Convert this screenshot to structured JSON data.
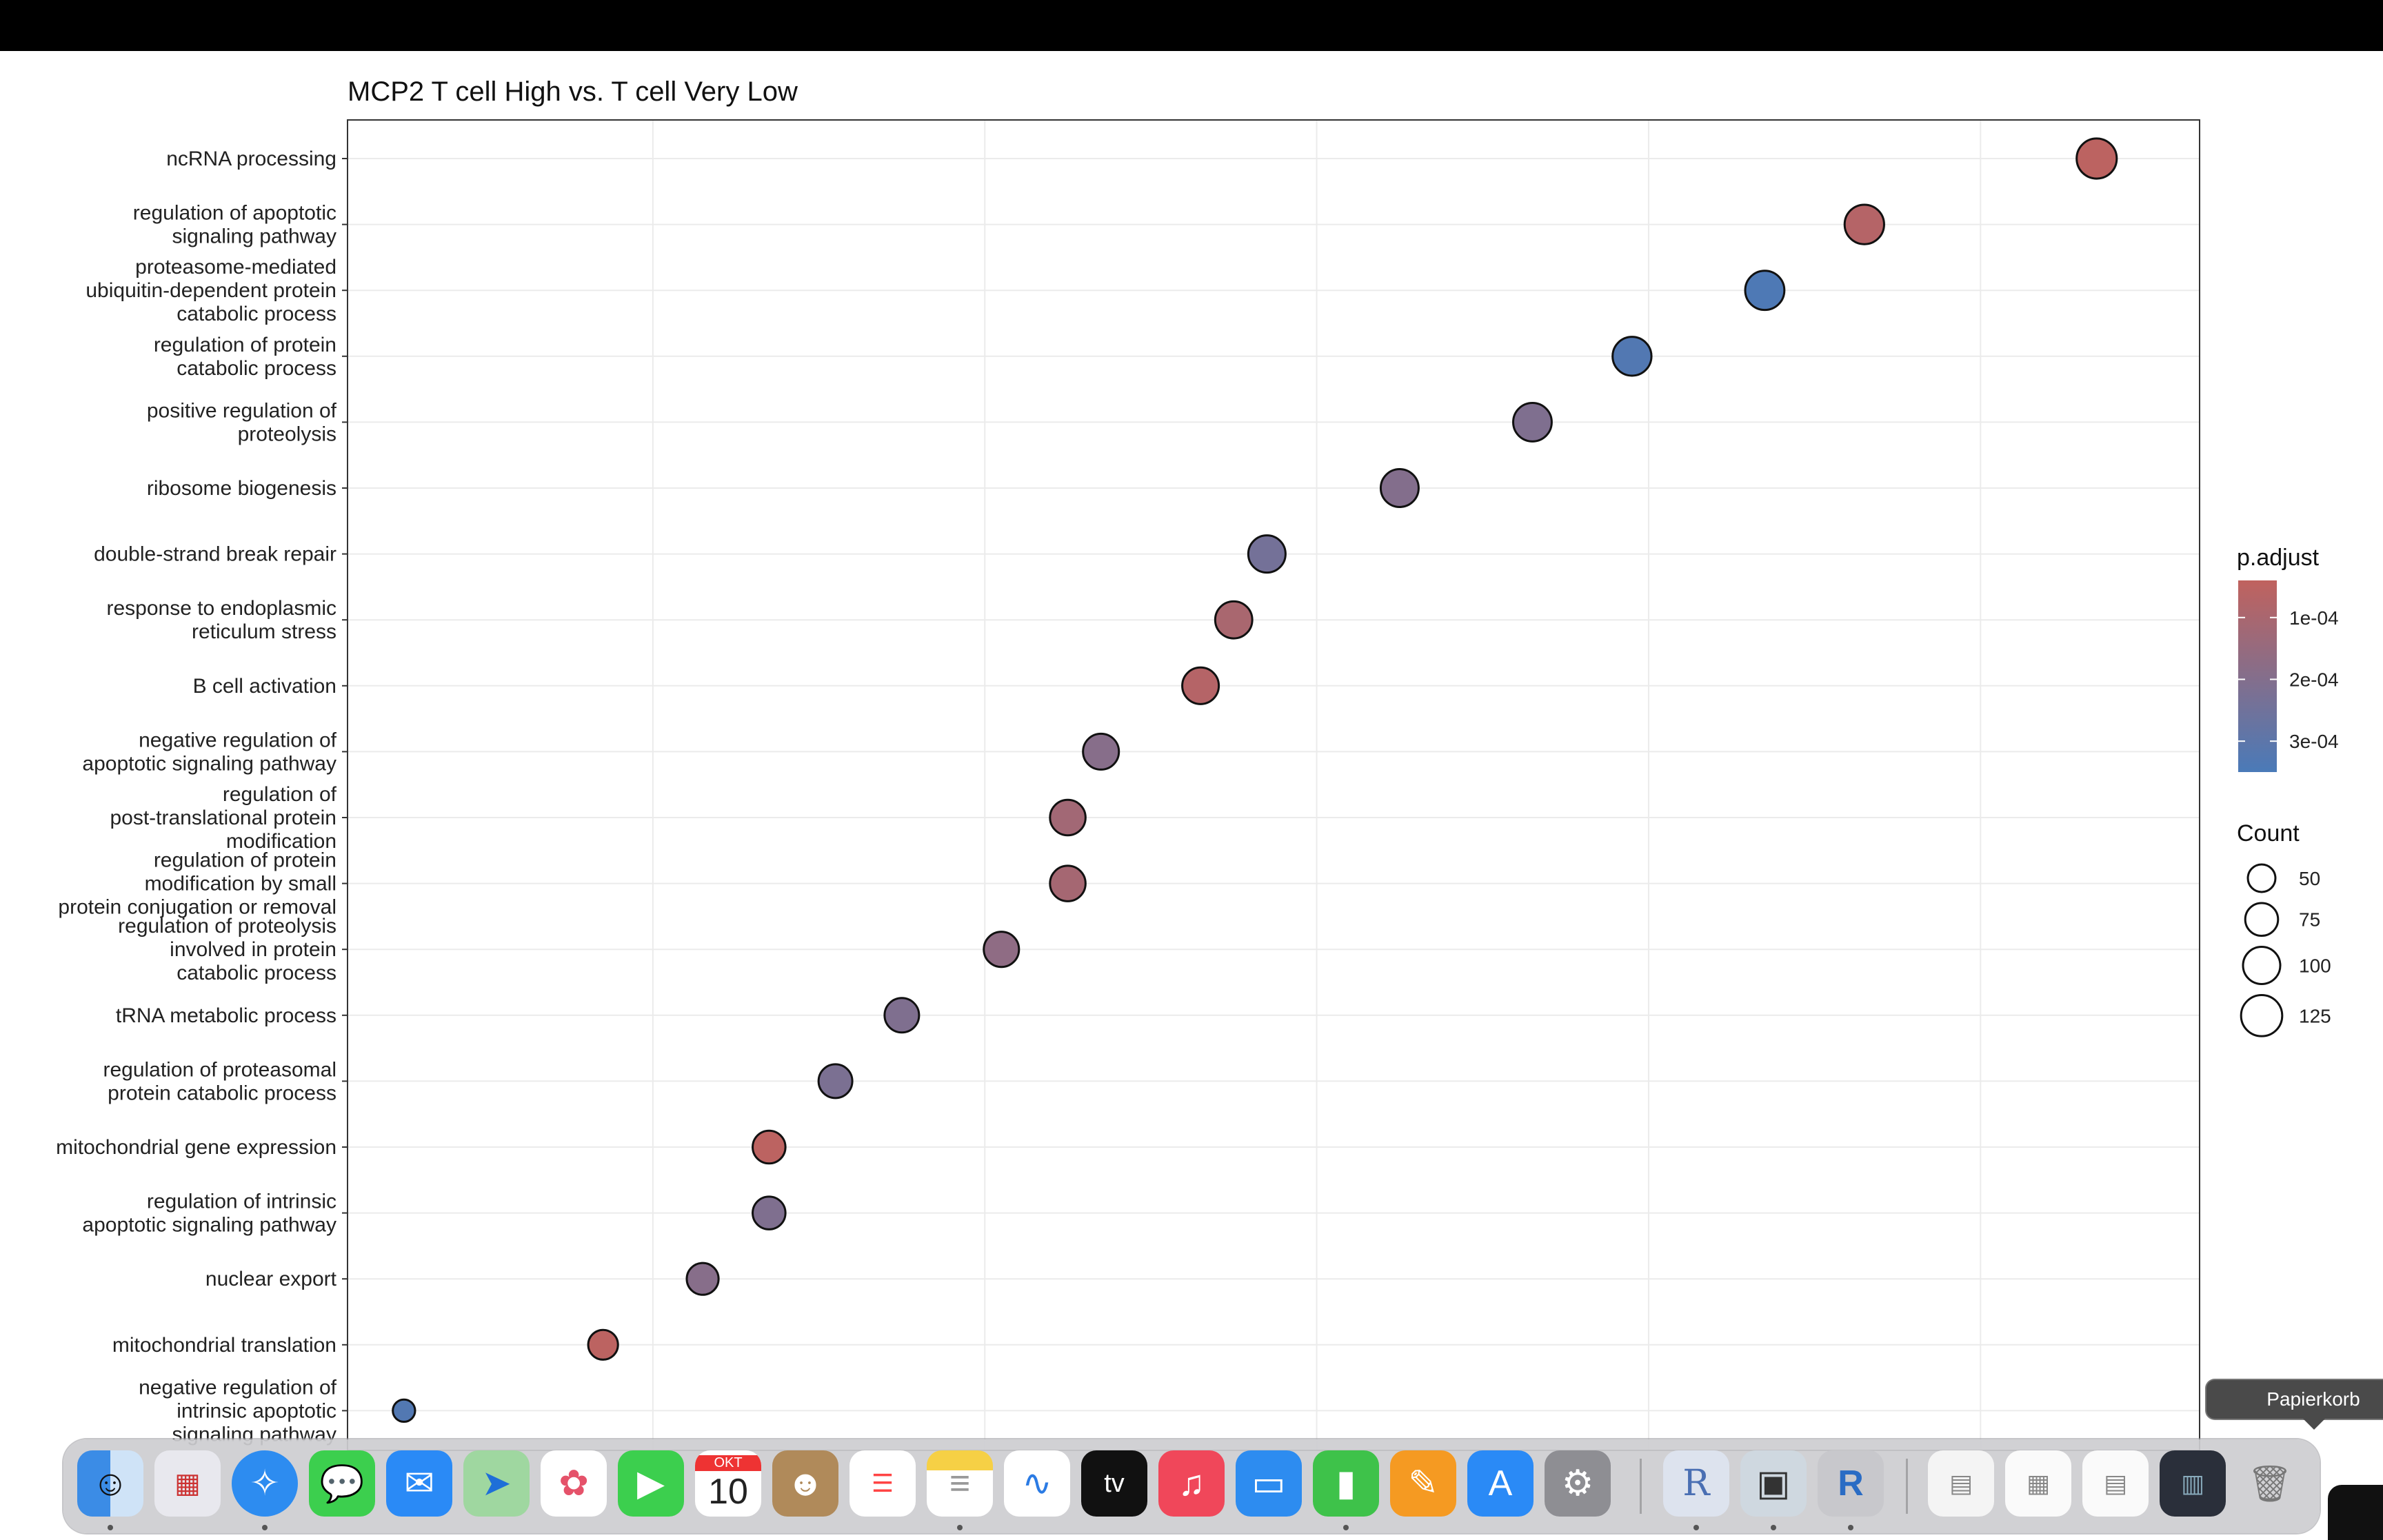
{
  "chart_data": {
    "type": "scatter",
    "title": "MCP2 T cell High vs. T cell Very Low",
    "xlabel": "",
    "ylabel": "",
    "grid": true,
    "categories": [
      "ncRNA processing",
      "regulation of apoptotic\nsignaling pathway",
      "proteasome-mediated\nubiquitin-dependent protein\ncatabolic process",
      "regulation of protein\ncatabolic process",
      "positive regulation of\nproteolysis",
      "ribosome biogenesis",
      "double-strand break repair",
      "response to endoplasmic\nreticulum stress",
      "B cell activation",
      "negative regulation of\napoptotic signaling pathway",
      "regulation of\npost-translational protein\nmodification",
      "regulation of protein\nmodification by small\nprotein conjugation or removal",
      "regulation of proteolysis\ninvolved in protein\ncatabolic process",
      "tRNA metabolic process",
      "regulation of proteasomal\nprotein catabolic process",
      "mitochondrial gene expression",
      "regulation of intrinsic\napoptotic signaling pathway",
      "nuclear export",
      "mitochondrial translation",
      "negative regulation of\nintrinsic apoptotic\nsignaling pathway"
    ],
    "series": [
      {
        "x": [
          0.087,
          0.08,
          0.077,
          0.073,
          0.07,
          0.066,
          0.062,
          0.061,
          0.06,
          0.057,
          0.056,
          0.056,
          0.054,
          0.051,
          0.049,
          0.047,
          0.047,
          0.045,
          0.042,
          0.036
        ],
        "count": [
          118,
          114,
          112,
          110,
          108,
          104,
          100,
          99,
          96,
          92,
          90,
          90,
          88,
          84,
          80,
          75,
          75,
          70,
          60,
          30
        ],
        "p_adjust": [
          5e-05,
          7e-05,
          0.00034,
          0.00033,
          0.00021,
          0.0002,
          0.00024,
          0.0001,
          7e-05,
          0.00019,
          0.00012,
          0.00011,
          0.00017,
          0.00021,
          0.00022,
          5e-05,
          0.00021,
          0.00019,
          5e-05,
          0.00033
        ]
      }
    ],
    "legend_padjust": {
      "title": "p.adjust",
      "ticks": [
        "1e-04",
        "2e-04",
        "3e-04"
      ],
      "low_color": "#c0625e",
      "high_color": "#4a7ab8"
    },
    "legend_count": {
      "title": "Count",
      "values": [
        "50",
        "75",
        "100",
        "125"
      ]
    }
  },
  "dock": {
    "items": [
      "Finder",
      "Launchpad",
      "Safari",
      "Messages",
      "Mail",
      "Maps",
      "Photos",
      "FaceTime",
      "Calendar",
      "Contacts",
      "Reminders",
      "Notes",
      "Freeform",
      "TV",
      "Music",
      "Keynote",
      "Numbers",
      "Pages",
      "App Store",
      "System Settings",
      "R",
      "Preview",
      "RStudio",
      "Document 1",
      "Document 2",
      "Document 3",
      "Document 4",
      "Trash"
    ],
    "calendar_month": "OKT",
    "calendar_day": "10",
    "tv_label": "tv",
    "tooltip": "Papierkorb"
  }
}
